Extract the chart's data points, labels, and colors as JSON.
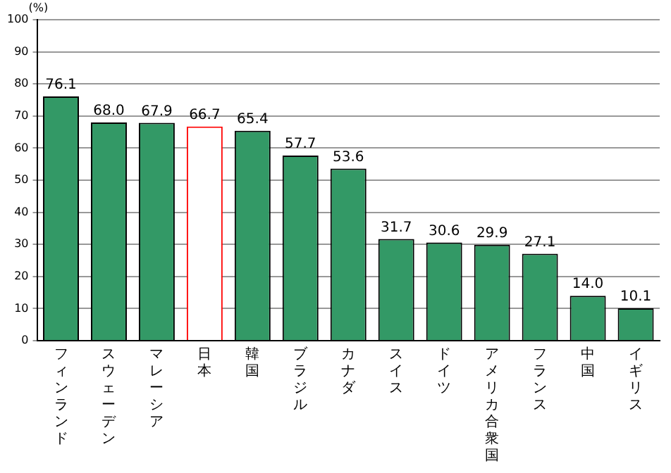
{
  "chart_data": {
    "type": "bar",
    "ylabel": "(%)",
    "categories": [
      "フィンランド",
      "スウェーデン",
      "マレーシア",
      "日本",
      "韓国",
      "ブラジル",
      "カナダ",
      "スイス",
      "ドイツ",
      "アメリカ合衆国",
      "フランス",
      "中国",
      "イギリス"
    ],
    "values": [
      76.1,
      68.0,
      67.9,
      66.7,
      65.4,
      57.7,
      53.6,
      31.7,
      30.6,
      29.9,
      27.1,
      14.0,
      10.1
    ],
    "value_labels": [
      "76.1",
      "68.0",
      "67.9",
      "66.7",
      "65.4",
      "57.7",
      "53.6",
      "31.7",
      "30.6",
      "29.9",
      "27.1",
      "14.0",
      "10.1"
    ],
    "colors": [
      "#339966",
      "#339966",
      "#339966",
      "#ffffff",
      "#339966",
      "#339966",
      "#339966",
      "#339966",
      "#339966",
      "#339966",
      "#339966",
      "#339966",
      "#339966"
    ],
    "ylim": [
      0,
      100
    ],
    "yticks": [
      0,
      10,
      20,
      30,
      40,
      50,
      60,
      70,
      80,
      90,
      100
    ],
    "grid": "y",
    "legend": false
  }
}
